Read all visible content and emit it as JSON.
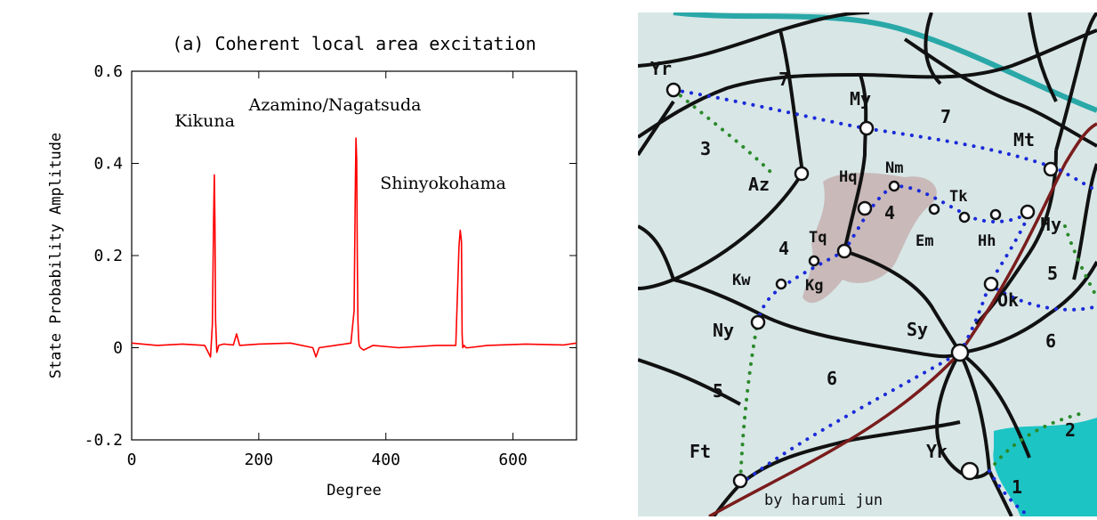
{
  "chart_data": {
    "type": "line",
    "title": "(a) Coherent local area excitation",
    "xlabel": "Degree",
    "ylabel": "State Probability Amplitude",
    "xlim": [
      0,
      700
    ],
    "ylim": [
      -0.2,
      0.6
    ],
    "xticks": [
      0,
      200,
      400,
      600
    ],
    "yticks": [
      -0.2,
      0,
      0.2,
      0.4,
      0.6
    ],
    "xtick_labels": [
      "0",
      "200",
      "400",
      "600"
    ],
    "ytick_labels": [
      "-0.2",
      "0",
      "0.2",
      "0.4",
      "0.6"
    ],
    "line_color": "#ff0000",
    "grid": false,
    "series": [
      {
        "x": [
          0,
          40,
          80,
          115,
          124,
          127,
          129,
          130,
          131,
          132,
          134,
          137,
          145,
          160,
          165,
          170,
          200,
          250,
          285,
          290,
          295,
          320,
          345,
          350,
          352,
          353,
          354,
          355,
          356,
          357,
          358,
          360,
          365,
          380,
          420,
          480,
          510,
          515,
          517,
          519,
          520,
          521,
          523,
          526,
          530,
          560,
          620,
          680,
          700
        ],
        "y": [
          0.01,
          0.005,
          0.008,
          0.005,
          -0.02,
          0.05,
          0.28,
          0.375,
          0.27,
          0.06,
          -0.01,
          0.005,
          0.008,
          0.006,
          0.03,
          0.005,
          0.008,
          0.01,
          0.0,
          -0.02,
          0.0,
          0.005,
          0.01,
          0.08,
          0.35,
          0.455,
          0.41,
          0.2,
          0.06,
          0.02,
          0.005,
          0.0,
          -0.005,
          0.005,
          0.0,
          0.005,
          0.005,
          0.22,
          0.255,
          0.23,
          0.03,
          0.0,
          0.005,
          0.0,
          0.0,
          0.005,
          0.008,
          0.006,
          0.01
        ]
      }
    ],
    "annotations": [
      {
        "text": "Kikuna",
        "x": 115,
        "y": 0.48
      },
      {
        "text": "Azamino/Nagatsuda",
        "x": 320,
        "y": 0.515
      },
      {
        "text": "Shinyokohama",
        "x": 490,
        "y": 0.345
      }
    ]
  },
  "map": {
    "background": "#d8e6e6",
    "credit": "by harumi jun",
    "stations": [
      "Yr",
      "My",
      "Mt",
      "Az",
      "Hq",
      "Nm",
      "Tk",
      "Em",
      "Hh",
      "Hy",
      "Tq",
      "Kg",
      "Kw",
      "Ok",
      "Ny",
      "Sy",
      "Ft",
      "Yk"
    ],
    "route_numbers": [
      "7",
      "7",
      "3",
      "4",
      "4",
      "5",
      "6",
      "6",
      "5",
      "2",
      "1"
    ]
  }
}
